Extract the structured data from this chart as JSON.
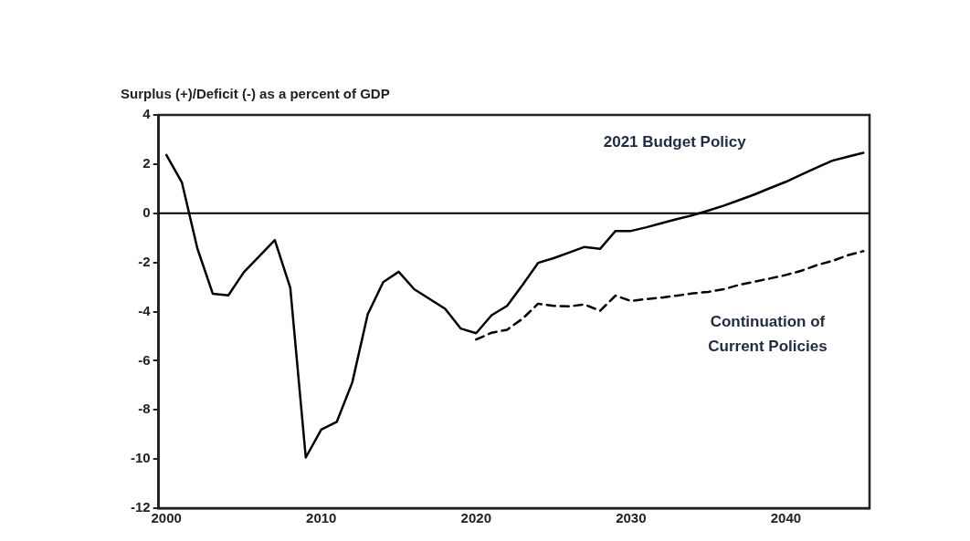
{
  "chart_data": {
    "type": "line",
    "ylabel": "Surplus (+)/Deficit (-) as a percent of GDP",
    "xlim": [
      1999.5,
      2045.4
    ],
    "xticks": [
      2000,
      2010,
      2020,
      2030,
      2040
    ],
    "ylim": [
      -12,
      4
    ],
    "yticks": [
      -12,
      -10,
      -8,
      -6,
      -4,
      -2,
      0,
      2,
      4
    ],
    "grid": false,
    "legend": false,
    "marker": "none",
    "ref_lines": [
      {
        "axis": "y",
        "value": 0,
        "color": "#000000"
      }
    ],
    "series": [
      {
        "name": "2021 Budget Policy",
        "color": "#000000",
        "line_style": "solid",
        "x": [
          2000,
          2001,
          2002,
          2003,
          2004,
          2005,
          2006,
          2007,
          2008,
          2009,
          2010,
          2011,
          2012,
          2013,
          2014,
          2015,
          2016,
          2017,
          2018,
          2019,
          2020,
          2021,
          2022,
          2023,
          2024,
          2025,
          2026,
          2027,
          2028,
          2029,
          2030,
          2031,
          2032,
          2033,
          2034,
          2035,
          2036,
          2037,
          2038,
          2039,
          2040,
          2041,
          2042,
          2043,
          2044,
          2045
        ],
        "values": [
          2.37,
          1.26,
          -1.43,
          -3.28,
          -3.34,
          -2.4,
          -1.75,
          -1.09,
          -3.03,
          -9.94,
          -8.8,
          -8.49,
          -6.89,
          -4.11,
          -2.8,
          -2.38,
          -3.09,
          -3.49,
          -3.89,
          -4.69,
          -4.88,
          -4.15,
          -3.77,
          -2.91,
          -2.02,
          -1.83,
          -1.6,
          -1.37,
          -1.45,
          -0.72,
          -0.72,
          -0.57,
          -0.4,
          -0.23,
          -0.08,
          0.11,
          0.31,
          0.54,
          0.77,
          1.03,
          1.28,
          1.57,
          1.86,
          2.14,
          2.3,
          2.46
        ]
      },
      {
        "name": "Continuation of\nCurrent Policies",
        "color": "#000000",
        "line_style": "dashed",
        "x": [
          2020,
          2021,
          2022,
          2023,
          2024,
          2025,
          2026,
          2027,
          2028,
          2029,
          2030,
          2031,
          2032,
          2033,
          2034,
          2035,
          2036,
          2037,
          2038,
          2039,
          2040,
          2041,
          2042,
          2043,
          2044,
          2045
        ],
        "values": [
          -5.14,
          -4.86,
          -4.74,
          -4.29,
          -3.68,
          -3.77,
          -3.79,
          -3.71,
          -3.97,
          -3.35,
          -3.57,
          -3.49,
          -3.43,
          -3.35,
          -3.26,
          -3.2,
          -3.09,
          -2.91,
          -2.78,
          -2.65,
          -2.51,
          -2.34,
          -2.11,
          -1.94,
          -1.71,
          -1.54
        ]
      }
    ]
  }
}
